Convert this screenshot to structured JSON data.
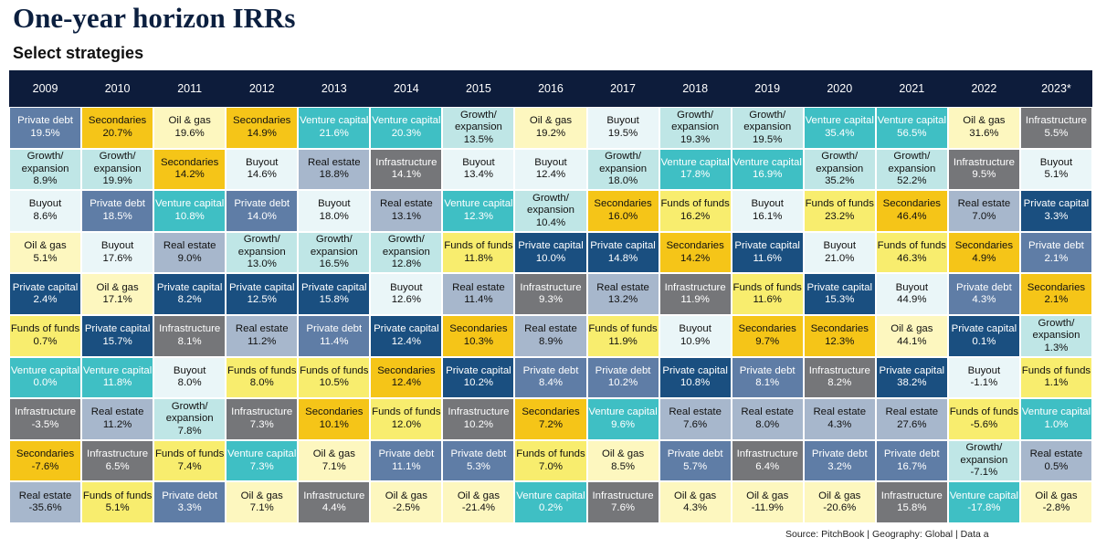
{
  "title": "One-year horizon IRRs",
  "subtitle": "Select strategies",
  "source": "Source: PitchBook | Geography: Global | Data a",
  "strategy_colors": {
    "Private debt": {
      "bg": "#5f7da6",
      "fg": "#ffffff"
    },
    "Secondaries": {
      "bg": "#f5c518",
      "fg": "#111111"
    },
    "Oil & gas": {
      "bg": "#fdf7bf",
      "fg": "#111111"
    },
    "Venture capital": {
      "bg": "#3fbfc4",
      "fg": "#ffffff"
    },
    "Growth/\nexpansion": {
      "bg": "#bfe6e6",
      "fg": "#111111"
    },
    "Buyout": {
      "bg": "#eaf6f8",
      "fg": "#111111"
    },
    "Infrastructure": {
      "bg": "#757679",
      "fg": "#ffffff"
    },
    "Real estate": {
      "bg": "#a7b7cc",
      "fg": "#111111"
    },
    "Private capital": {
      "bg": "#1a4f80",
      "fg": "#ffffff"
    },
    "Funds of funds": {
      "bg": "#f8ed6e",
      "fg": "#111111"
    }
  },
  "chart_data": {
    "type": "table",
    "title": "One-year horizon IRRs",
    "subtitle": "Select strategies",
    "years": [
      "2009",
      "2010",
      "2011",
      "2012",
      "2013",
      "2014",
      "2015",
      "2016",
      "2017",
      "2018",
      "2019",
      "2020",
      "2021",
      "2022",
      "2023*"
    ],
    "columns": [
      [
        {
          "strategy": "Private debt",
          "irr": "19.5%"
        },
        {
          "strategy": "Growth/\nexpansion",
          "irr": "8.9%"
        },
        {
          "strategy": "Buyout",
          "irr": "8.6%"
        },
        {
          "strategy": "Oil & gas",
          "irr": "5.1%"
        },
        {
          "strategy": "Private capital",
          "irr": "2.4%"
        },
        {
          "strategy": "Funds of funds",
          "irr": "0.7%"
        },
        {
          "strategy": "Venture capital",
          "irr": "0.0%"
        },
        {
          "strategy": "Infrastructure",
          "irr": "-3.5%"
        },
        {
          "strategy": "Secondaries",
          "irr": "-7.6%"
        },
        {
          "strategy": "Real estate",
          "irr": "-35.6%"
        }
      ],
      [
        {
          "strategy": "Secondaries",
          "irr": "20.7%"
        },
        {
          "strategy": "Growth/\nexpansion",
          "irr": "19.9%"
        },
        {
          "strategy": "Private debt",
          "irr": "18.5%"
        },
        {
          "strategy": "Buyout",
          "irr": "17.6%"
        },
        {
          "strategy": "Oil & gas",
          "irr": "17.1%"
        },
        {
          "strategy": "Private capital",
          "irr": "15.7%"
        },
        {
          "strategy": "Venture capital",
          "irr": "11.8%"
        },
        {
          "strategy": "Real estate",
          "irr": "11.2%"
        },
        {
          "strategy": "Infrastructure",
          "irr": "6.5%"
        },
        {
          "strategy": "Funds of funds",
          "irr": "5.1%"
        }
      ],
      [
        {
          "strategy": "Oil & gas",
          "irr": "19.6%"
        },
        {
          "strategy": "Secondaries",
          "irr": "14.2%"
        },
        {
          "strategy": "Venture capital",
          "irr": "10.8%"
        },
        {
          "strategy": "Real estate",
          "irr": "9.0%"
        },
        {
          "strategy": "Private capital",
          "irr": "8.2%"
        },
        {
          "strategy": "Infrastructure",
          "irr": "8.1%"
        },
        {
          "strategy": "Buyout",
          "irr": "8.0%"
        },
        {
          "strategy": "Growth/\nexpansion",
          "irr": "7.8%"
        },
        {
          "strategy": "Funds of funds",
          "irr": "7.4%"
        },
        {
          "strategy": "Private debt",
          "irr": "3.3%"
        }
      ],
      [
        {
          "strategy": "Secondaries",
          "irr": "14.9%"
        },
        {
          "strategy": "Buyout",
          "irr": "14.6%"
        },
        {
          "strategy": "Private debt",
          "irr": "14.0%"
        },
        {
          "strategy": "Growth/\nexpansion",
          "irr": "13.0%"
        },
        {
          "strategy": "Private capital",
          "irr": "12.5%"
        },
        {
          "strategy": "Real estate",
          "irr": "11.2%"
        },
        {
          "strategy": "Funds of funds",
          "irr": "8.0%"
        },
        {
          "strategy": "Infrastructure",
          "irr": "7.3%"
        },
        {
          "strategy": "Venture capital",
          "irr": "7.3%"
        },
        {
          "strategy": "Oil & gas",
          "irr": "7.1%"
        }
      ],
      [
        {
          "strategy": "Venture capital",
          "irr": "21.6%"
        },
        {
          "strategy": "Real estate",
          "irr": "18.8%"
        },
        {
          "strategy": "Buyout",
          "irr": "18.0%"
        },
        {
          "strategy": "Growth/\nexpansion",
          "irr": "16.5%"
        },
        {
          "strategy": "Private capital",
          "irr": "15.8%"
        },
        {
          "strategy": "Private debt",
          "irr": "11.4%"
        },
        {
          "strategy": "Funds of funds",
          "irr": "10.5%"
        },
        {
          "strategy": "Secondaries",
          "irr": "10.1%"
        },
        {
          "strategy": "Oil & gas",
          "irr": "7.1%"
        },
        {
          "strategy": "Infrastructure",
          "irr": "4.4%"
        }
      ],
      [
        {
          "strategy": "Venture capital",
          "irr": "20.3%"
        },
        {
          "strategy": "Infrastructure",
          "irr": "14.1%"
        },
        {
          "strategy": "Real estate",
          "irr": "13.1%"
        },
        {
          "strategy": "Growth/\nexpansion",
          "irr": "12.8%"
        },
        {
          "strategy": "Buyout",
          "irr": "12.6%"
        },
        {
          "strategy": "Private capital",
          "irr": "12.4%"
        },
        {
          "strategy": "Secondaries",
          "irr": "12.4%"
        },
        {
          "strategy": "Funds of funds",
          "irr": "12.0%"
        },
        {
          "strategy": "Private debt",
          "irr": "11.1%"
        },
        {
          "strategy": "Oil & gas",
          "irr": "-2.5%"
        }
      ],
      [
        {
          "strategy": "Growth/\nexpansion",
          "irr": "13.5%"
        },
        {
          "strategy": "Buyout",
          "irr": "13.4%"
        },
        {
          "strategy": "Venture capital",
          "irr": "12.3%"
        },
        {
          "strategy": "Funds of funds",
          "irr": "11.8%"
        },
        {
          "strategy": "Real estate",
          "irr": "11.4%"
        },
        {
          "strategy": "Secondaries",
          "irr": "10.3%"
        },
        {
          "strategy": "Private capital",
          "irr": "10.2%"
        },
        {
          "strategy": "Infrastructure",
          "irr": "10.2%"
        },
        {
          "strategy": "Private debt",
          "irr": "5.3%"
        },
        {
          "strategy": "Oil & gas",
          "irr": "-21.4%"
        }
      ],
      [
        {
          "strategy": "Oil & gas",
          "irr": "19.2%"
        },
        {
          "strategy": "Buyout",
          "irr": "12.4%"
        },
        {
          "strategy": "Growth/\nexpansion",
          "irr": "10.4%"
        },
        {
          "strategy": "Private capital",
          "irr": "10.0%"
        },
        {
          "strategy": "Infrastructure",
          "irr": "9.3%"
        },
        {
          "strategy": "Real estate",
          "irr": "8.9%"
        },
        {
          "strategy": "Private debt",
          "irr": "8.4%"
        },
        {
          "strategy": "Secondaries",
          "irr": "7.2%"
        },
        {
          "strategy": "Funds of funds",
          "irr": "7.0%"
        },
        {
          "strategy": "Venture capital",
          "irr": "0.2%"
        }
      ],
      [
        {
          "strategy": "Buyout",
          "irr": "19.5%"
        },
        {
          "strategy": "Growth/\nexpansion",
          "irr": "18.0%"
        },
        {
          "strategy": "Secondaries",
          "irr": "16.0%"
        },
        {
          "strategy": "Private capital",
          "irr": "14.8%"
        },
        {
          "strategy": "Real estate",
          "irr": "13.2%"
        },
        {
          "strategy": "Funds of funds",
          "irr": "11.9%"
        },
        {
          "strategy": "Private debt",
          "irr": "10.2%"
        },
        {
          "strategy": "Venture capital",
          "irr": "9.6%"
        },
        {
          "strategy": "Oil & gas",
          "irr": "8.5%"
        },
        {
          "strategy": "Infrastructure",
          "irr": "7.6%"
        }
      ],
      [
        {
          "strategy": "Growth/\nexpansion",
          "irr": "19.3%"
        },
        {
          "strategy": "Venture capital",
          "irr": "17.8%"
        },
        {
          "strategy": "Funds of funds",
          "irr": "16.2%"
        },
        {
          "strategy": "Secondaries",
          "irr": "14.2%"
        },
        {
          "strategy": "Infrastructure",
          "irr": "11.9%"
        },
        {
          "strategy": "Buyout",
          "irr": "10.9%"
        },
        {
          "strategy": "Private capital",
          "irr": "10.8%"
        },
        {
          "strategy": "Real estate",
          "irr": "7.6%"
        },
        {
          "strategy": "Private debt",
          "irr": "5.7%"
        },
        {
          "strategy": "Oil & gas",
          "irr": "4.3%"
        }
      ],
      [
        {
          "strategy": "Growth/\nexpansion",
          "irr": "19.5%"
        },
        {
          "strategy": "Venture capital",
          "irr": "16.9%"
        },
        {
          "strategy": "Buyout",
          "irr": "16.1%"
        },
        {
          "strategy": "Private capital",
          "irr": "11.6%"
        },
        {
          "strategy": "Funds of funds",
          "irr": "11.6%"
        },
        {
          "strategy": "Secondaries",
          "irr": "9.7%"
        },
        {
          "strategy": "Private debt",
          "irr": "8.1%"
        },
        {
          "strategy": "Real estate",
          "irr": "8.0%"
        },
        {
          "strategy": "Infrastructure",
          "irr": "6.4%"
        },
        {
          "strategy": "Oil & gas",
          "irr": "-11.9%"
        }
      ],
      [
        {
          "strategy": "Venture capital",
          "irr": "35.4%"
        },
        {
          "strategy": "Growth/\nexpansion",
          "irr": "35.2%"
        },
        {
          "strategy": "Funds of funds",
          "irr": "23.2%"
        },
        {
          "strategy": "Buyout",
          "irr": "21.0%"
        },
        {
          "strategy": "Private capital",
          "irr": "15.3%"
        },
        {
          "strategy": "Secondaries",
          "irr": "12.3%"
        },
        {
          "strategy": "Infrastructure",
          "irr": "8.2%"
        },
        {
          "strategy": "Real estate",
          "irr": "4.3%"
        },
        {
          "strategy": "Private debt",
          "irr": "3.2%"
        },
        {
          "strategy": "Oil & gas",
          "irr": "-20.6%"
        }
      ],
      [
        {
          "strategy": "Venture capital",
          "irr": "56.5%"
        },
        {
          "strategy": "Growth/\nexpansion",
          "irr": "52.2%"
        },
        {
          "strategy": "Secondaries",
          "irr": "46.4%"
        },
        {
          "strategy": "Funds of funds",
          "irr": "46.3%"
        },
        {
          "strategy": "Buyout",
          "irr": "44.9%"
        },
        {
          "strategy": "Oil & gas",
          "irr": "44.1%"
        },
        {
          "strategy": "Private capital",
          "irr": "38.2%"
        },
        {
          "strategy": "Real estate",
          "irr": "27.6%"
        },
        {
          "strategy": "Private debt",
          "irr": "16.7%"
        },
        {
          "strategy": "Infrastructure",
          "irr": "15.8%"
        }
      ],
      [
        {
          "strategy": "Oil & gas",
          "irr": "31.6%"
        },
        {
          "strategy": "Infrastructure",
          "irr": "9.5%"
        },
        {
          "strategy": "Real estate",
          "irr": "7.0%"
        },
        {
          "strategy": "Secondaries",
          "irr": "4.9%"
        },
        {
          "strategy": "Private debt",
          "irr": "4.3%"
        },
        {
          "strategy": "Private capital",
          "irr": "0.1%"
        },
        {
          "strategy": "Buyout",
          "irr": "-1.1%"
        },
        {
          "strategy": "Funds of funds",
          "irr": "-5.6%"
        },
        {
          "strategy": "Growth/\nexpansion",
          "irr": "-7.1%"
        },
        {
          "strategy": "Venture capital",
          "irr": "-17.8%"
        }
      ],
      [
        {
          "strategy": "Infrastructure",
          "irr": "5.5%"
        },
        {
          "strategy": "Buyout",
          "irr": "5.1%"
        },
        {
          "strategy": "Private capital",
          "irr": "3.3%"
        },
        {
          "strategy": "Private debt",
          "irr": "2.1%"
        },
        {
          "strategy": "Secondaries",
          "irr": "2.1%"
        },
        {
          "strategy": "Growth/\nexpansion",
          "irr": "1.3%"
        },
        {
          "strategy": "Funds of funds",
          "irr": "1.1%"
        },
        {
          "strategy": "Venture capital",
          "irr": "1.0%"
        },
        {
          "strategy": "Real estate",
          "irr": "0.5%"
        },
        {
          "strategy": "Oil & gas",
          "irr": "-2.8%"
        }
      ]
    ]
  }
}
